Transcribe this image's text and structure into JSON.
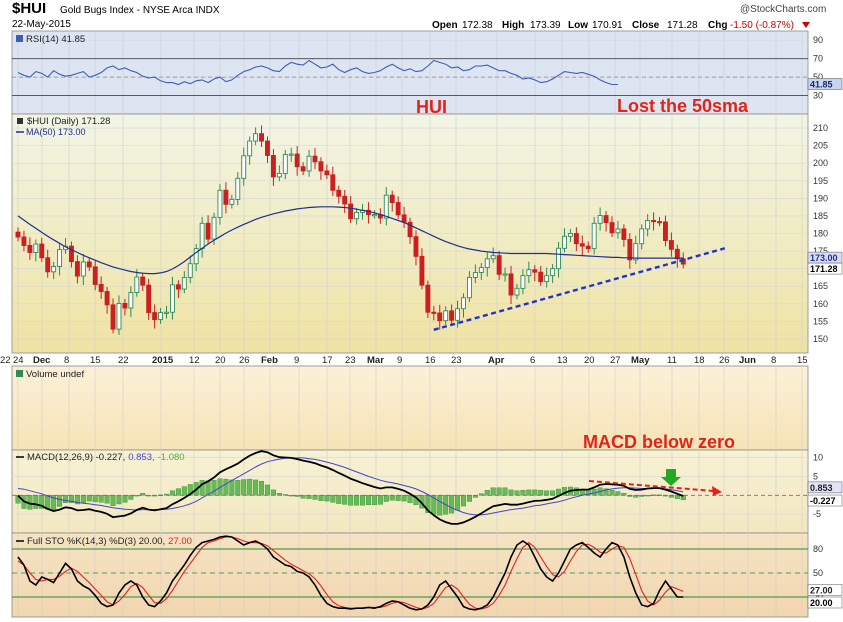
{
  "header": {
    "symbol": "$HUI",
    "name": "Gold Bugs Index - NYSE Arca INDX",
    "date": "22-May-2015",
    "watermark": "@StockCharts.com",
    "open_label": "Open",
    "open": "172.38",
    "high_label": "High",
    "high": "173.39",
    "low_label": "Low",
    "low": "170.91",
    "close_label": "Close",
    "close": "171.28",
    "chg_label": "Chg",
    "chg": "-1.50 (-0.87%)"
  },
  "annotations": {
    "hui": "HUI",
    "lost50": "Lost the 50sma",
    "macd_zero": "MACD below zero"
  },
  "colors": {
    "up": "#2e8b57",
    "down": "#cc1f1f",
    "ma": "#1f2f8f",
    "trend": "#2233cc",
    "rsi": "#3c5fb4",
    "sto_k": "#000000",
    "sto_d": "#dd2222",
    "hist": "#66bb55"
  },
  "chart_data": [
    {
      "type": "line",
      "panel": "rsi",
      "legend": "RSI(14) 41.85",
      "series": [
        {
          "name": "RSI(14)",
          "values": [
            55,
            52,
            50,
            56,
            54,
            50,
            57,
            53,
            51,
            52,
            54,
            56,
            50,
            52,
            55,
            60,
            62,
            58,
            60,
            57,
            55,
            51,
            49,
            50,
            46,
            44,
            44,
            42,
            45,
            43,
            46,
            47,
            44,
            48,
            50,
            45,
            47,
            52,
            56,
            58,
            61,
            62,
            60,
            57,
            56,
            62,
            66,
            64,
            63,
            68,
            64,
            60,
            61,
            64,
            58,
            55,
            58,
            60,
            56,
            54,
            55,
            57,
            61,
            64,
            60,
            57,
            59,
            56,
            57,
            62,
            68,
            66,
            64,
            60,
            61,
            57,
            58,
            62,
            62,
            63,
            60,
            57,
            57,
            54,
            52,
            48,
            49,
            47,
            44,
            45,
            48,
            52,
            56,
            55,
            54,
            55,
            53,
            51,
            47,
            44,
            42,
            42
          ]
        }
      ],
      "yticks": [
        "90",
        "70",
        "50",
        "30"
      ],
      "ylim": [
        10,
        100
      ],
      "last_label": "41.85"
    },
    {
      "type": "candlestick",
      "panel": "price",
      "title": "$HUI (Daily) 171.28",
      "ma_label": "MA(50) 173.00",
      "ylim": [
        146,
        214
      ],
      "yticks": [
        "210",
        "205",
        "200",
        "195",
        "190",
        "185",
        "180",
        "175",
        "170",
        "165",
        "160",
        "155",
        "150"
      ],
      "xticks": [
        "24",
        "Dec",
        "8",
        "15",
        "22",
        "2015",
        "12",
        "20",
        "26",
        "Feb",
        "9",
        "17",
        "23",
        "Mar",
        "9",
        "16",
        "23",
        "Apr",
        "6",
        "13",
        "20",
        "27",
        "May",
        "11",
        "18",
        "26",
        "Jun",
        "8",
        "15",
        "22"
      ],
      "close": [
        179.0,
        176.6,
        174.6,
        177.0,
        173.1,
        169.1,
        170.6,
        175.4,
        176.4,
        172.0,
        167.9,
        171.9,
        170.5,
        165.5,
        163.5,
        159.7,
        152.8,
        160.1,
        158.8,
        163.2,
        167.6,
        165.3,
        157.5,
        155.5,
        157.5,
        157.6,
        165.4,
        164.2,
        167.5,
        171.4,
        175.7,
        182.9,
        178.4,
        184.6,
        192.3,
        188.3,
        189.7,
        195.7,
        202.1,
        206.3,
        208.4,
        206.3,
        202.2,
        196.1,
        197.1,
        202.5,
        202.6,
        199.0,
        197.8,
        202.0,
        200.4,
        197.8,
        196.7,
        192.3,
        190.6,
        188.4,
        184.2,
        186.0,
        186.6,
        185.4,
        185.4,
        184.4,
        190.9,
        188.8,
        185.3,
        183.2,
        179.1,
        173.5,
        165.3,
        157.6,
        157.4,
        155.2,
        158.0,
        155.3,
        158.6,
        161.7,
        167.5,
        168.9,
        170.3,
        172.8,
        173.7,
        168.4,
        168.5,
        162.5,
        164.4,
        168.0,
        169.7,
        169.0,
        166.3,
        168.0,
        170.0,
        175.8,
        179.2,
        180.0,
        177.1,
        176.4,
        175.7,
        182.9,
        185.1,
        183.1,
        180.2,
        181.3,
        178.3,
        172.5,
        177.1,
        181.3,
        183.7,
        183.4,
        183.3,
        178.0,
        175.5,
        172.8,
        171.3
      ],
      "ma50": [
        185.0,
        183.8,
        182.6,
        181.5,
        180.3,
        179.2,
        178.2,
        177.2,
        176.2,
        175.4,
        174.6,
        173.8,
        173.1,
        172.4,
        171.7,
        171.1,
        170.5,
        170.0,
        169.6,
        169.2,
        168.9,
        168.7,
        168.6,
        168.6,
        168.8,
        169.2,
        169.9,
        170.9,
        172.0,
        173.3,
        174.6,
        175.8,
        177.0,
        178.1,
        179.1,
        180.1,
        181.0,
        181.8,
        182.6,
        183.3,
        184.0,
        184.6,
        185.1,
        185.6,
        186.0,
        186.4,
        186.7,
        187.0,
        187.2,
        187.4,
        187.5,
        187.6,
        187.6,
        187.6,
        187.5,
        187.4,
        187.2,
        186.9,
        186.6,
        186.3,
        185.9,
        185.4,
        184.9,
        184.3,
        183.7,
        183.1,
        182.4,
        181.6,
        180.8,
        180.0,
        179.2,
        178.4,
        177.7,
        177.1,
        176.5,
        176.0,
        175.6,
        175.3,
        175.0,
        174.8,
        174.6,
        174.5,
        174.4,
        174.3,
        174.3,
        174.3,
        174.3,
        174.3,
        174.3,
        174.3,
        174.2,
        174.1,
        174.0,
        173.9,
        173.8,
        173.7,
        173.6,
        173.5,
        173.4,
        173.3,
        173.2,
        173.2,
        173.1,
        173.1,
        173.0,
        173.0,
        173.0,
        173.0,
        173.0,
        173.0,
        173.0,
        173.0,
        173.0
      ],
      "trendline": {
        "from": {
          "index": 70,
          "value": 152.6
        },
        "to": {
          "index": 119,
          "value": 175.8
        }
      },
      "last_labels": [
        "173.00",
        "171.28"
      ]
    },
    {
      "type": "bar",
      "panel": "volume",
      "legend": "Volume undef",
      "values": []
    },
    {
      "type": "line",
      "panel": "macd",
      "legend_prefix": "MACD(12,26,9) -0.227,",
      "legend_signal": "0.853,",
      "legend_hist": "-1.080",
      "series": [
        {
          "name": "MACD(12,26,9)",
          "values": [
            -0.1,
            -1.6,
            -2.2,
            -2.4,
            -2.8,
            -3.6,
            -4.2,
            -3.8,
            -3.2,
            -3.4,
            -4.0,
            -3.9,
            -3.7,
            -4.1,
            -4.4,
            -4.9,
            -5.8,
            -5.6,
            -5.4,
            -4.8,
            -3.9,
            -3.3,
            -3.8,
            -4.0,
            -3.7,
            -3.4,
            -2.4,
            -1.6,
            -0.7,
            0.3,
            1.5,
            2.9,
            3.7,
            4.7,
            6.1,
            6.9,
            7.6,
            8.4,
            9.5,
            10.5,
            11.2,
            11.7,
            11.4,
            10.6,
            10.1,
            10.0,
            9.9,
            9.6,
            9.2,
            8.9,
            8.5,
            7.9,
            7.4,
            6.7,
            5.9,
            5.2,
            4.4,
            3.8,
            3.2,
            2.7,
            2.2,
            1.8,
            2.1,
            2.1,
            1.7,
            1.2,
            0.4,
            -0.6,
            -2.1,
            -4.0,
            -5.3,
            -6.4,
            -7.1,
            -7.6,
            -7.6,
            -7.2,
            -6.5,
            -5.7,
            -4.8,
            -3.8,
            -2.9,
            -2.6,
            -2.3,
            -2.5,
            -2.5,
            -2.2,
            -1.8,
            -1.5,
            -1.4,
            -1.2,
            -0.9,
            -0.2,
            0.6,
            1.2,
            1.4,
            1.5,
            1.5,
            2.1,
            2.8,
            3.0,
            2.9,
            2.8,
            2.5,
            1.7,
            1.4,
            1.5,
            1.8,
            1.9,
            1.9,
            1.5,
            1.0,
            0.4,
            -0.2
          ]
        },
        {
          "name": "Signal",
          "values": [
            1.8,
            1.6,
            1.2,
            0.8,
            0.4,
            -0.2,
            -0.7,
            -1.1,
            -1.4,
            -1.6,
            -1.9,
            -2.1,
            -2.3,
            -2.5,
            -2.7,
            -3.0,
            -3.3,
            -3.5,
            -3.7,
            -3.8,
            -3.9,
            -3.8,
            -3.8,
            -3.8,
            -3.8,
            -3.7,
            -3.5,
            -3.2,
            -2.8,
            -2.3,
            -1.6,
            -0.7,
            0.2,
            1.1,
            2.1,
            3.0,
            3.9,
            4.8,
            5.7,
            6.6,
            7.5,
            8.3,
            8.9,
            9.3,
            9.6,
            9.8,
            9.9,
            9.9,
            9.9,
            9.7,
            9.5,
            9.2,
            8.8,
            8.4,
            7.9,
            7.4,
            6.8,
            6.2,
            5.6,
            5.0,
            4.5,
            4.0,
            3.6,
            3.3,
            3.0,
            2.6,
            2.2,
            1.7,
            1.0,
            0.2,
            -0.7,
            -1.6,
            -2.5,
            -3.3,
            -4.0,
            -4.6,
            -5.0,
            -5.2,
            -5.2,
            -5.0,
            -4.7,
            -4.4,
            -4.1,
            -3.8,
            -3.6,
            -3.4,
            -3.1,
            -2.8,
            -2.6,
            -2.3,
            -2.0,
            -1.7,
            -1.3,
            -0.8,
            -0.4,
            0.0,
            0.3,
            0.6,
            1.0,
            1.4,
            1.7,
            1.9,
            2.0,
            2.0,
            1.9,
            1.8,
            1.8,
            1.8,
            1.8,
            1.7,
            1.5,
            1.2,
            0.9
          ]
        }
      ],
      "ylim": [
        -10,
        12
      ],
      "yticks": [
        "10",
        "5",
        "-5"
      ],
      "last_labels": [
        "0.853",
        "-0.227"
      ]
    },
    {
      "type": "line",
      "panel": "sto",
      "legend_prefix": "Full STO %K(14,3) %D(3) 20.00,",
      "legend_d": "27.00",
      "series": [
        {
          "name": "%K",
          "values": [
            70,
            60,
            40,
            35,
            45,
            42,
            38,
            50,
            62,
            55,
            40,
            34,
            30,
            22,
            12,
            8,
            10,
            25,
            35,
            40,
            35,
            20,
            10,
            8,
            15,
            25,
            40,
            50,
            60,
            72,
            82,
            88,
            90,
            92,
            95,
            96,
            95,
            90,
            85,
            88,
            90,
            86,
            80,
            70,
            65,
            60,
            58,
            52,
            50,
            45,
            35,
            22,
            12,
            8,
            6,
            6,
            5,
            6,
            6,
            7,
            6,
            8,
            12,
            15,
            14,
            10,
            6,
            4,
            5,
            10,
            20,
            35,
            40,
            30,
            20,
            8,
            5,
            4,
            6,
            10,
            20,
            35,
            50,
            70,
            85,
            90,
            85,
            70,
            55,
            45,
            40,
            50,
            65,
            80,
            85,
            88,
            82,
            75,
            70,
            80,
            88,
            85,
            70,
            45,
            25,
            10,
            8,
            12,
            28,
            40,
            30,
            20,
            20
          ]
        },
        {
          "name": "%D",
          "values": [
            65,
            60,
            50,
            42,
            40,
            42,
            42,
            46,
            52,
            56,
            52,
            45,
            38,
            30,
            22,
            14,
            10,
            15,
            23,
            33,
            37,
            32,
            22,
            13,
            12,
            18,
            28,
            40,
            52,
            62,
            72,
            82,
            88,
            90,
            93,
            95,
            95,
            93,
            90,
            88,
            88,
            87,
            84,
            78,
            72,
            66,
            61,
            57,
            53,
            49,
            43,
            34,
            23,
            14,
            9,
            7,
            6,
            6,
            6,
            7,
            7,
            7,
            9,
            12,
            14,
            13,
            10,
            7,
            5,
            7,
            12,
            22,
            32,
            35,
            30,
            20,
            11,
            6,
            5,
            7,
            12,
            22,
            35,
            52,
            68,
            82,
            88,
            82,
            70,
            58,
            48,
            45,
            52,
            65,
            77,
            85,
            86,
            82,
            76,
            75,
            80,
            84,
            82,
            68,
            48,
            28,
            15,
            10,
            16,
            26,
            33,
            30,
            27
          ]
        }
      ],
      "ylim": [
        -5,
        100
      ],
      "yticks": [
        "80",
        "50",
        "20"
      ],
      "last_labels": [
        "27.00",
        "20.00"
      ]
    }
  ]
}
